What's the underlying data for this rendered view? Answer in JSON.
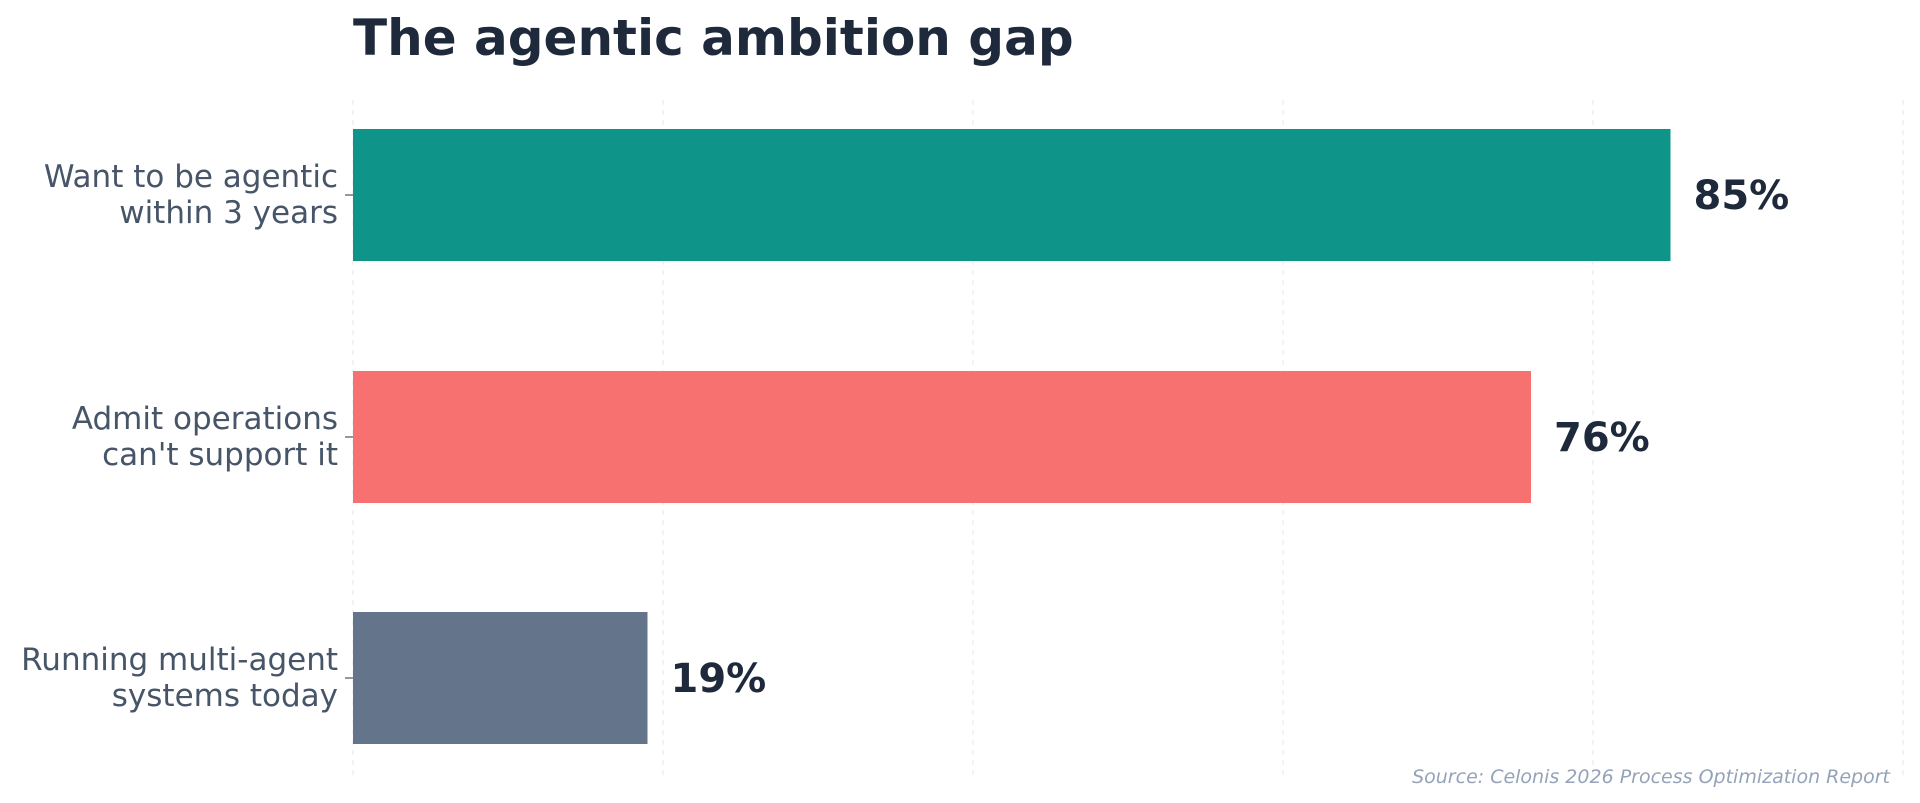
{
  "chart_data": {
    "type": "bar",
    "orientation": "horizontal",
    "title": "The agentic ambition gap",
    "categories": [
      [
        "Want to be agentic",
        "within 3 years"
      ],
      [
        "Admit operations",
        "can't support it"
      ],
      [
        "Running multi-agent",
        "systems today"
      ]
    ],
    "values": [
      85,
      76,
      19
    ],
    "value_labels": [
      "85%",
      "76%",
      "19%"
    ],
    "colors": [
      "#0e9488",
      "#f87171",
      "#64748b"
    ],
    "xlim": [
      0,
      100
    ],
    "grid": true,
    "source": "Source: Celonis 2026 Process Optimization Report"
  }
}
